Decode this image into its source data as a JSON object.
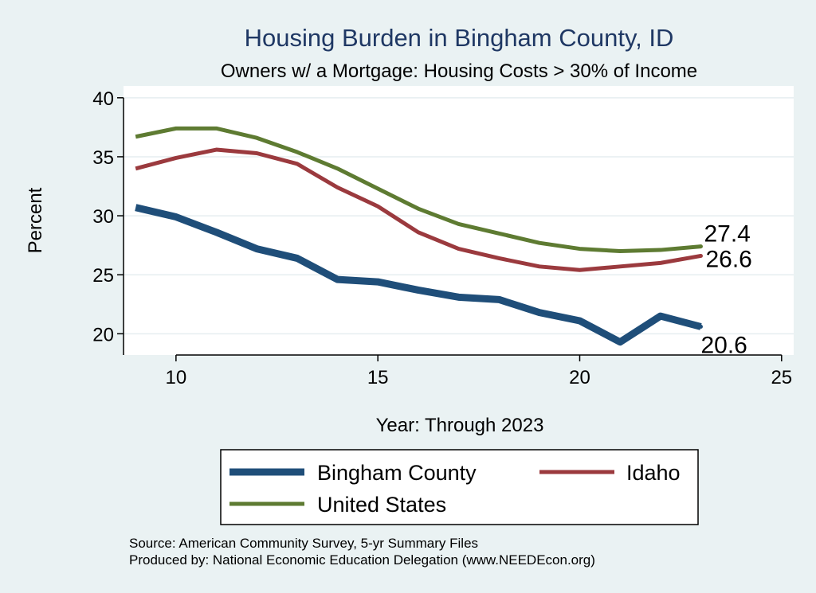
{
  "chart_data": {
    "type": "line",
    "title": "Housing Burden in Bingham County, ID",
    "subtitle": "Owners w/ a Mortgage: Housing Costs > 30% of Income",
    "xlabel": "Year: Through 2023",
    "ylabel": "Percent",
    "xlim": [
      8.7,
      25.3
    ],
    "ylim": [
      18.2,
      41
    ],
    "xticks": [
      10,
      15,
      20,
      25
    ],
    "yticks": [
      20,
      25,
      30,
      35,
      40
    ],
    "grid": true,
    "x": [
      9,
      10,
      11,
      12,
      13,
      14,
      15,
      16,
      17,
      18,
      19,
      20,
      21,
      22,
      23
    ],
    "series": [
      {
        "name": "Bingham County",
        "color": "#1f4e79",
        "width": "thick",
        "values": [
          30.7,
          29.9,
          28.6,
          27.2,
          26.4,
          24.6,
          24.4,
          23.7,
          23.1,
          22.9,
          21.8,
          21.1,
          19.3,
          21.5,
          20.6
        ],
        "end_label": "20.6"
      },
      {
        "name": "Idaho",
        "color": "#9b3a3e",
        "width": "medium",
        "values": [
          34.0,
          34.9,
          35.6,
          35.3,
          34.4,
          32.4,
          30.8,
          28.6,
          27.2,
          26.4,
          25.7,
          25.4,
          25.7,
          26.0,
          26.6
        ],
        "end_label": "26.6"
      },
      {
        "name": "United States",
        "color": "#5e7b32",
        "width": "medium",
        "values": [
          36.7,
          37.4,
          37.4,
          36.6,
          35.4,
          34.0,
          32.3,
          30.6,
          29.3,
          28.5,
          27.7,
          27.2,
          27.0,
          27.1,
          27.4
        ],
        "end_label": "27.4"
      }
    ],
    "legend": {
      "placement": "bottom",
      "entries": [
        "Bingham County",
        "Idaho",
        "United States"
      ]
    }
  },
  "footer": {
    "source": "Source: American Community Survey, 5-yr Summary Files",
    "produced_by": "Produced by: National Economic Education Delegation (www.NEEDEcon.org)"
  }
}
